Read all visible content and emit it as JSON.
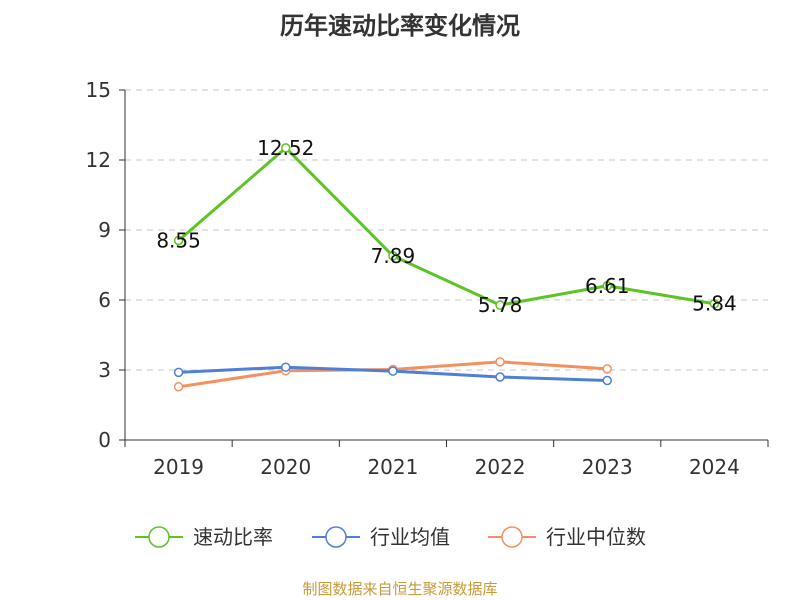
{
  "chart_data": {
    "type": "line",
    "title": "历年速动比率变化情况",
    "categories": [
      "2019",
      "2020",
      "2021",
      "2022",
      "2023",
      "2024"
    ],
    "ylim": [
      0,
      15
    ],
    "yticks": [
      0,
      3,
      6,
      9,
      12,
      15
    ],
    "grid": true,
    "legend_position": "bottom",
    "series": [
      {
        "name": "速动比率",
        "color": "#5ec324",
        "values": [
          8.55,
          12.52,
          7.89,
          5.78,
          6.61,
          5.84
        ],
        "labels": [
          "8.55",
          "12.52",
          "7.89",
          "5.78",
          "6.61",
          "5.84"
        ]
      },
      {
        "name": "行业均值",
        "color": "#4f7fd6",
        "values": [
          2.9,
          3.12,
          2.95,
          2.7,
          2.55,
          null
        ]
      },
      {
        "name": "行业中位数",
        "color": "#f3905e",
        "values": [
          2.28,
          2.97,
          3.02,
          3.35,
          3.05,
          null
        ]
      }
    ]
  },
  "source": "制图数据来自恒生聚源数据库"
}
